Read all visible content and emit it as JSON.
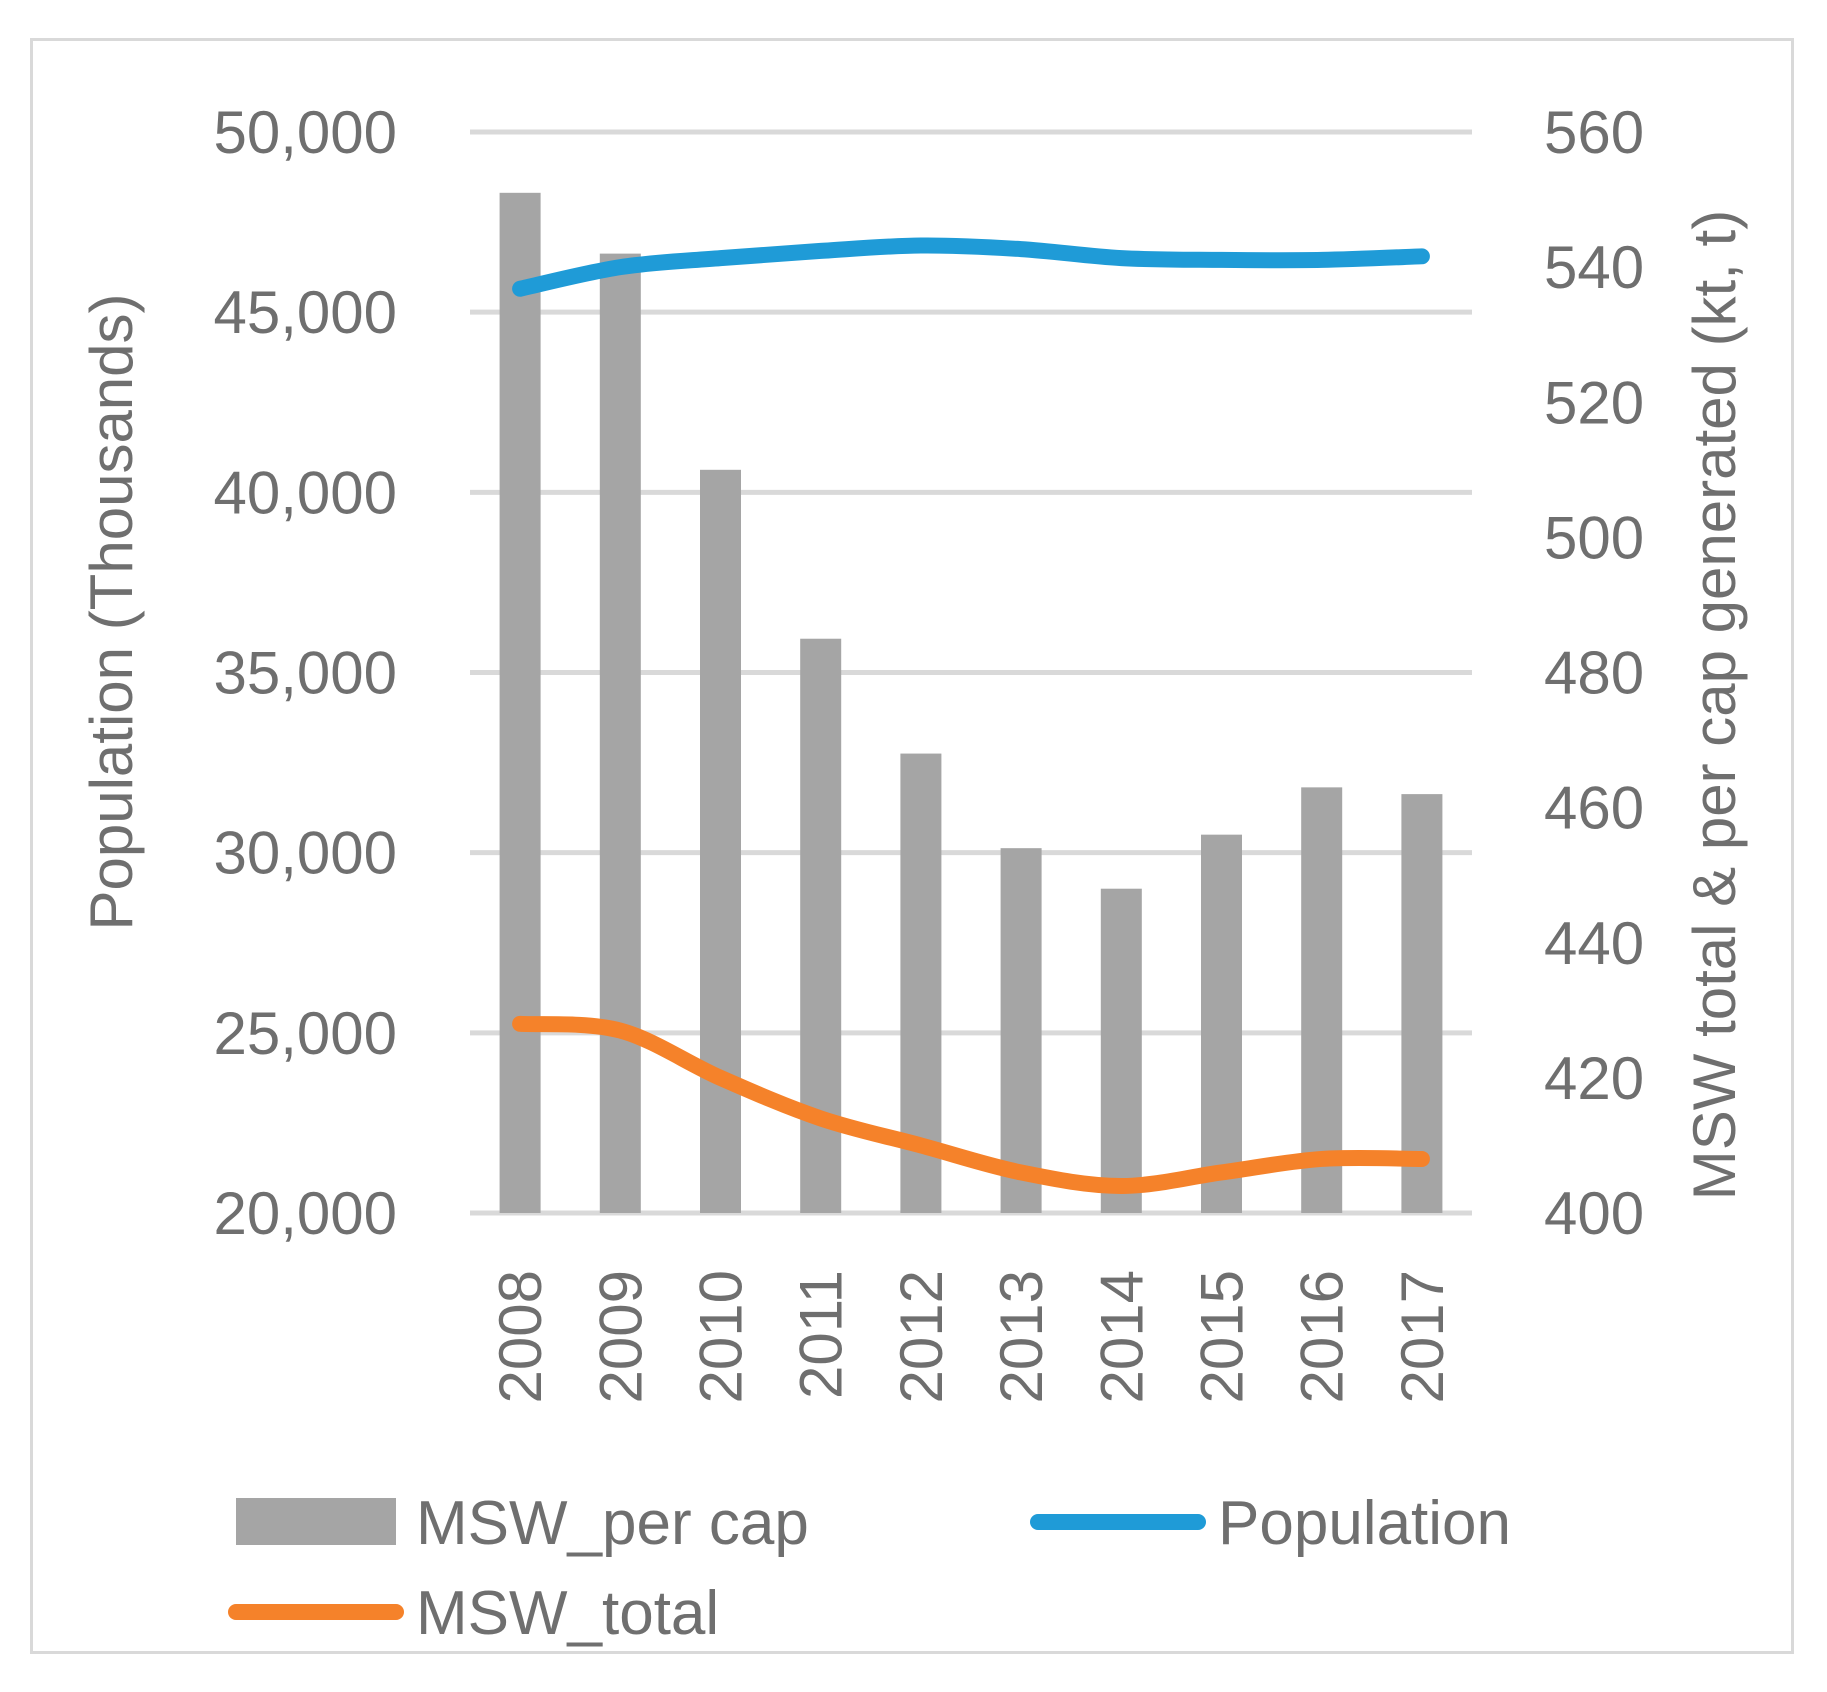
{
  "chart_data": {
    "type": "bar",
    "title": "",
    "categories": [
      "2008",
      "2009",
      "2010",
      "2011",
      "2012",
      "2013",
      "2014",
      "2015",
      "2016",
      "2017"
    ],
    "series": [
      {
        "name": "MSW_per cap",
        "type": "bar",
        "axis": "right",
        "color": "#a5a5a5",
        "values": [
          551,
          542,
          510,
          485,
          468,
          454,
          448,
          456,
          463,
          462
        ]
      },
      {
        "name": "Population",
        "type": "line",
        "axis": "left",
        "color": "#1f9bd7",
        "values": [
          45650,
          46250,
          46500,
          46700,
          46850,
          46750,
          46500,
          46450,
          46450,
          46550
        ]
      },
      {
        "name": "MSW_total",
        "type": "line",
        "axis": "right",
        "color": "#f5822a",
        "values": [
          428,
          427,
          420,
          414,
          410,
          406,
          404,
          406,
          408,
          408
        ]
      }
    ],
    "y_left": {
      "label": "Population (Thousands)",
      "ylim": [
        20000,
        50000
      ],
      "ticks": [
        20000,
        25000,
        30000,
        35000,
        40000,
        45000,
        50000
      ],
      "tick_labels": [
        "20,000",
        "25,000",
        "30,000",
        "35,000",
        "40,000",
        "45,000",
        "50,000"
      ]
    },
    "y_right": {
      "label": "MSW total & per cap generated (kt, t)",
      "ylim": [
        400,
        560
      ],
      "ticks": [
        400,
        420,
        440,
        460,
        480,
        500,
        520,
        540,
        560
      ],
      "tick_labels": [
        "400",
        "420",
        "440",
        "460",
        "480",
        "500",
        "520",
        "540",
        "560"
      ]
    },
    "xlabel": "",
    "grid": true,
    "legend_position": "bottom"
  }
}
